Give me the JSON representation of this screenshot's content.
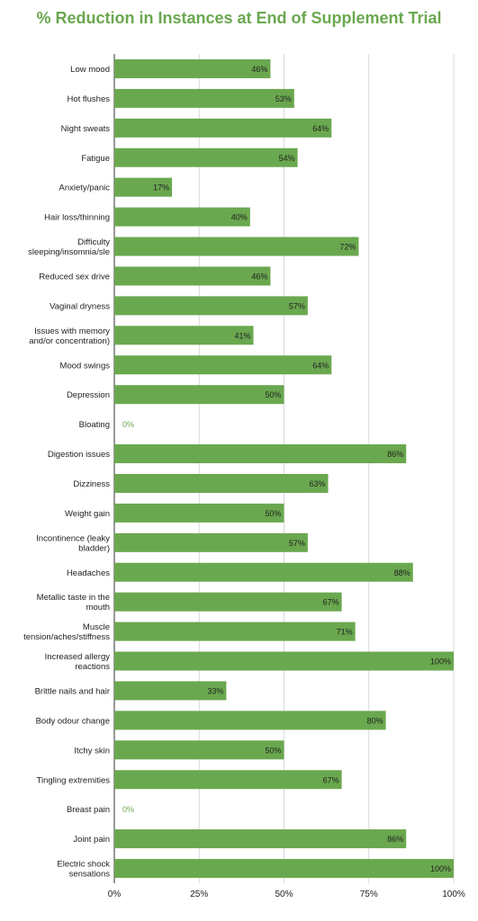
{
  "chart_data": {
    "type": "bar",
    "orientation": "horizontal",
    "title": "% Reduction in Instances at End of Supplement Trial",
    "categories": [
      [
        "Low mood"
      ],
      [
        "Hot flushes"
      ],
      [
        "Night sweats"
      ],
      [
        "Fatigue"
      ],
      [
        "Anxiety/panic"
      ],
      [
        "Hair loss/thinning"
      ],
      [
        "Difficulty",
        "sleeping/insomnia/sle"
      ],
      [
        "Reduced sex drive"
      ],
      [
        "Vaginal dryness"
      ],
      [
        "Issues with memory",
        "and/or concentration)"
      ],
      [
        "Mood swings"
      ],
      [
        "Depression"
      ],
      [
        "Bloating"
      ],
      [
        "Digestion issues"
      ],
      [
        "Dizziness"
      ],
      [
        "Weight gain"
      ],
      [
        "Incontinence (leaky",
        "bladder)"
      ],
      [
        "Headaches"
      ],
      [
        "Metallic taste in the",
        "mouth"
      ],
      [
        "Muscle",
        "tension/aches/stiffness"
      ],
      [
        "Increased allergy",
        "reactions"
      ],
      [
        "Brittle nails and hair"
      ],
      [
        "Body odour change"
      ],
      [
        "Itchy skin"
      ],
      [
        "Tingling extremities"
      ],
      [
        "Breast pain"
      ],
      [
        "Joint pain"
      ],
      [
        "Electric shock",
        "sensations"
      ]
    ],
    "values": [
      46,
      53,
      64,
      54,
      17,
      40,
      72,
      46,
      57,
      41,
      64,
      50,
      0,
      86,
      63,
      50,
      57,
      88,
      67,
      71,
      100,
      33,
      80,
      50,
      67,
      0,
      86,
      100
    ],
    "value_labels": [
      "46%",
      "53%",
      "64%",
      "54%",
      "17%",
      "40%",
      "72%",
      "46%",
      "57%",
      "41%",
      "64%",
      "50%",
      "0%",
      "86%",
      "63%",
      "50%",
      "57%",
      "88%",
      "67%",
      "71%",
      "100%",
      "33%",
      "80%",
      "50%",
      "67%",
      "0%",
      "86%",
      "100%"
    ],
    "xlim": [
      0,
      100
    ],
    "x_ticks": [
      "0%",
      "25%",
      "50%",
      "75%",
      "100%"
    ],
    "grid": true,
    "bar_color": "#6aa84f",
    "title_color": "#6aa84f"
  }
}
